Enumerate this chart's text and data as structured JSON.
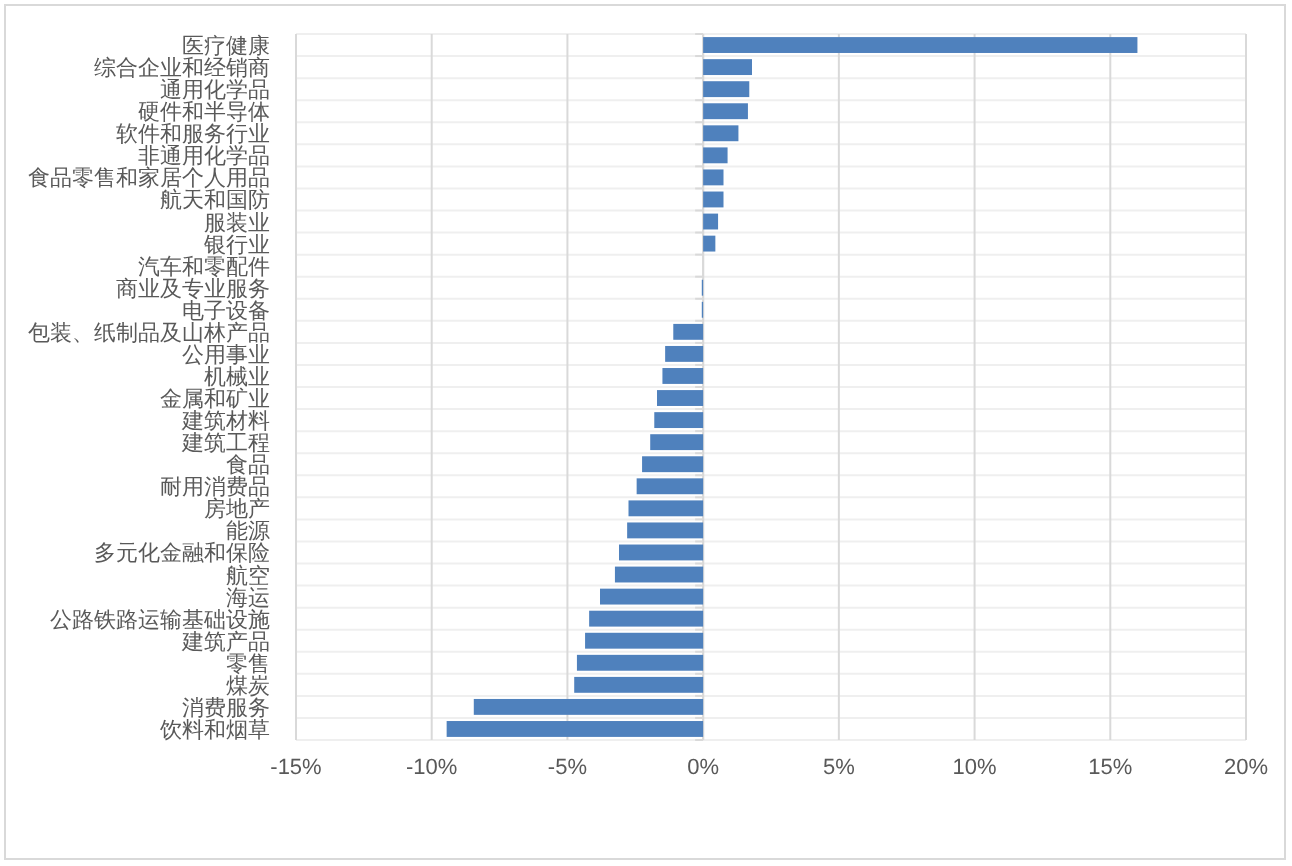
{
  "chart_data": {
    "type": "bar",
    "orientation": "horizontal",
    "grid": true,
    "categories": [
      "医疗健康",
      "综合企业和经销商",
      "通用化学品",
      "硬件和半导体",
      "软件和服务行业",
      "非通用化学品",
      "食品零售和家居个人用品",
      "航天和国防",
      "服装业",
      "银行业",
      "汽车和零配件",
      "商业及专业服务",
      "电子设备",
      "包装、纸制品及山林产品",
      "公用事业",
      "机械业",
      "金属和矿业",
      "建筑材料",
      "建筑工程",
      "食品",
      "耐用消费品",
      "房地产",
      "能源",
      "多元化金融和保险",
      "航空",
      "海运",
      "公路铁路运输基础设施",
      "建筑产品",
      "零售",
      "煤炭",
      "消费服务",
      "饮料和烟草"
    ],
    "values": [
      16.0,
      1.8,
      1.7,
      1.65,
      1.3,
      0.9,
      0.75,
      0.75,
      0.55,
      0.45,
      0.0,
      -0.05,
      -0.05,
      -1.1,
      -1.4,
      -1.5,
      -1.7,
      -1.8,
      -1.95,
      -2.25,
      -2.45,
      -2.75,
      -2.8,
      -3.1,
      -3.25,
      -3.8,
      -4.2,
      -4.35,
      -4.65,
      -4.75,
      -8.45,
      -9.45
    ],
    "color": "#4f81bd",
    "xlim": [
      -15,
      20
    ],
    "xticks": [
      {
        "value": -15,
        "label": "-15%"
      },
      {
        "value": -10,
        "label": "-10%"
      },
      {
        "value": -5,
        "label": "-5%"
      },
      {
        "value": 0,
        "label": "0%"
      },
      {
        "value": 5,
        "label": "5%"
      },
      {
        "value": 10,
        "label": "10%"
      },
      {
        "value": 15,
        "label": "15%"
      },
      {
        "value": 20,
        "label": "20%"
      }
    ]
  }
}
